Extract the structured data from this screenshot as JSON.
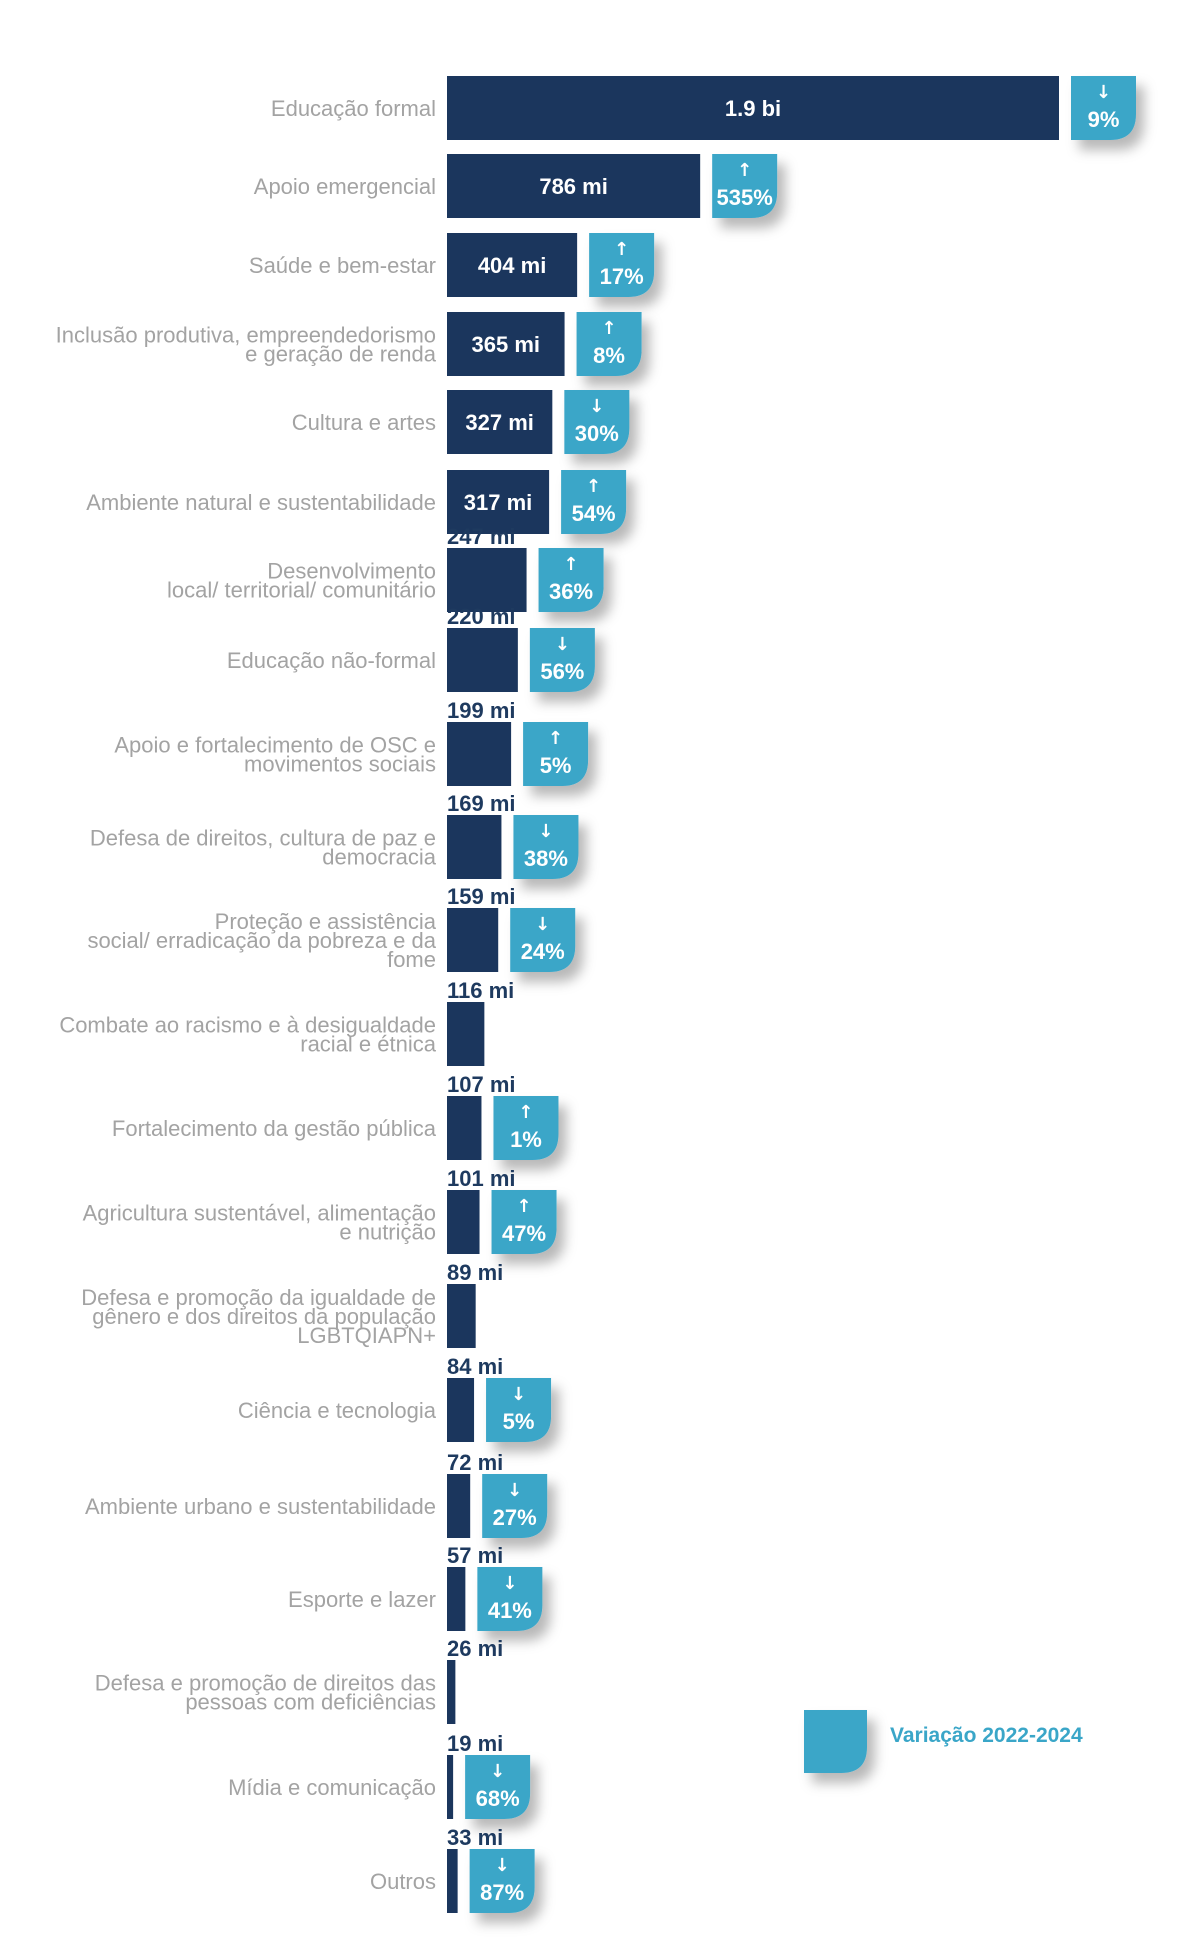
{
  "colors": {
    "bar": "#1b365d",
    "badge": "#3aa6c8",
    "label": "#a3a3a3",
    "value_out": "#1e3a5f"
  },
  "legend": {
    "label": "Variação 2022-2024"
  },
  "chart_data": {
    "type": "bar",
    "orientation": "horizontal",
    "title": "",
    "xlabel": "",
    "ylabel": "",
    "grid": false,
    "legend_position": "right",
    "categories": [
      [
        "Educação formal"
      ],
      [
        "Apoio emergencial"
      ],
      [
        "Saúde e bem-estar"
      ],
      [
        "Inclusão produtiva, empreendedorismo",
        "e geração de renda"
      ],
      [
        "Cultura e artes"
      ],
      [
        "Ambiente natural e sustentabilidade"
      ],
      [
        "Desenvolvimento",
        "local/ territorial/ comunitário"
      ],
      [
        "Educação não-formal"
      ],
      [
        "Apoio e fortalecimento de OSC e",
        "movimentos sociais"
      ],
      [
        "Defesa de direitos, cultura de paz e",
        "democracia"
      ],
      [
        "Proteção e assistência",
        "social/ erradicação da pobreza e da",
        "fome"
      ],
      [
        "Combate ao racismo e à desigualdade",
        "racial e étnica"
      ],
      [
        "Fortalecimento da gestão pública"
      ],
      [
        "Agricultura sustentável, alimentação",
        "e nutrição"
      ],
      [
        "Defesa e promoção da igualdade de",
        "gênero e dos direitos da população",
        "LGBTQIAPN+"
      ],
      [
        "Ciência e tecnologia"
      ],
      [
        "Ambiente urbano e sustentabilidade"
      ],
      [
        "Esporte e lazer"
      ],
      [
        "Defesa e promoção de direitos das",
        "pessoas com deficiências"
      ],
      [
        "Mídia e comunicação"
      ],
      [
        "Outros"
      ]
    ],
    "values": [
      1900,
      786,
      404,
      365,
      327,
      317,
      247,
      220,
      199,
      169,
      159,
      116,
      107,
      101,
      89,
      84,
      72,
      57,
      26,
      19,
      33
    ],
    "value_labels": [
      "1.9 bi",
      "786 mi",
      "404 mi",
      "365 mi",
      "327 mi",
      "317 mi",
      "247 mi",
      "220 mi",
      "199 mi",
      "169 mi",
      "159 mi",
      "116 mi",
      "107 mi",
      "101 mi",
      "89 mi",
      "84 mi",
      "72 mi",
      "57 mi",
      "26 mi",
      "19 mi",
      "33 mi"
    ],
    "value_unit": "mi",
    "variation_series": {
      "name": "Variação 2022-2024",
      "values": [
        -9,
        535,
        17,
        8,
        -30,
        54,
        36,
        -56,
        5,
        -38,
        -24,
        null,
        1,
        47,
        null,
        -5,
        -27,
        -41,
        null,
        -68,
        -87
      ],
      "labels": [
        "9%",
        "535%",
        "17%",
        "8%",
        "30%",
        "54%",
        "36%",
        "56%",
        "5%",
        "38%",
        "24%",
        null,
        "1%",
        "47%",
        null,
        "5%",
        "27%",
        "41%",
        null,
        "68%",
        "87%"
      ],
      "arrows": [
        "↓",
        "↑",
        "↑",
        "↑",
        "↓",
        "↑",
        "↑",
        "↓",
        "↑",
        "↓",
        "↓",
        null,
        "↑",
        "↑",
        null,
        "↓",
        "↓",
        "↓",
        null,
        "↓",
        "↓"
      ]
    }
  }
}
